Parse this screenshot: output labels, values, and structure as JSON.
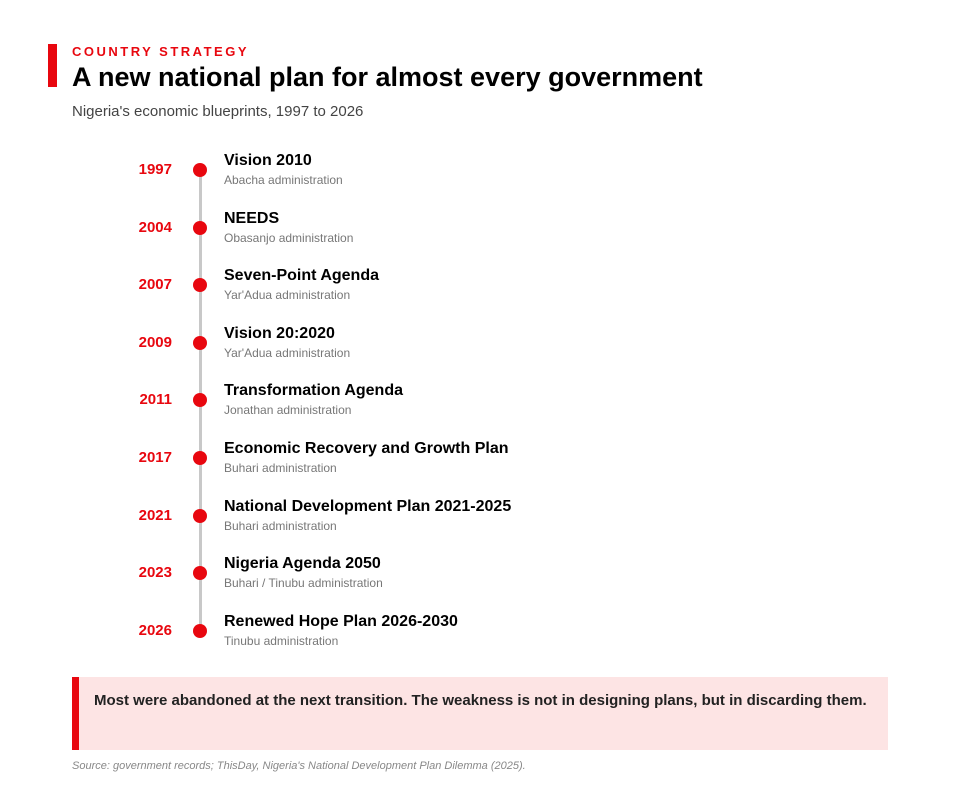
{
  "header": {
    "kicker": "COUNTRY STRATEGY",
    "title": "A new national plan for almost every government",
    "subtitle": "Nigeria's economic blueprints, 1997 to 2026"
  },
  "timeline": {
    "items": [
      {
        "year": "1997",
        "name": "Vision 2010",
        "admin": "Abacha administration"
      },
      {
        "year": "2004",
        "name": "NEEDS",
        "admin": "Obasanjo administration"
      },
      {
        "year": "2007",
        "name": "Seven-Point Agenda",
        "admin": "Yar'Adua administration"
      },
      {
        "year": "2009",
        "name": "Vision 20:2020",
        "admin": "Yar'Adua administration"
      },
      {
        "year": "2011",
        "name": "Transformation Agenda",
        "admin": "Jonathan administration"
      },
      {
        "year": "2017",
        "name": "Economic Recovery and Growth Plan",
        "admin": "Buhari administration"
      },
      {
        "year": "2021",
        "name": "National Development Plan 2021-2025",
        "admin": "Buhari administration"
      },
      {
        "year": "2023",
        "name": "Nigeria Agenda 2050",
        "admin": "Buhari / Tinubu administration"
      },
      {
        "year": "2026",
        "name": "Renewed Hope Plan 2026-2030",
        "admin": "Tinubu administration"
      }
    ]
  },
  "callout": "Most were abandoned at the next transition. The weakness is not in designing plans, but in discarding them.",
  "source": "Source: government records; ThisDay, Nigeria's National Development Plan Dilemma (2025)."
}
